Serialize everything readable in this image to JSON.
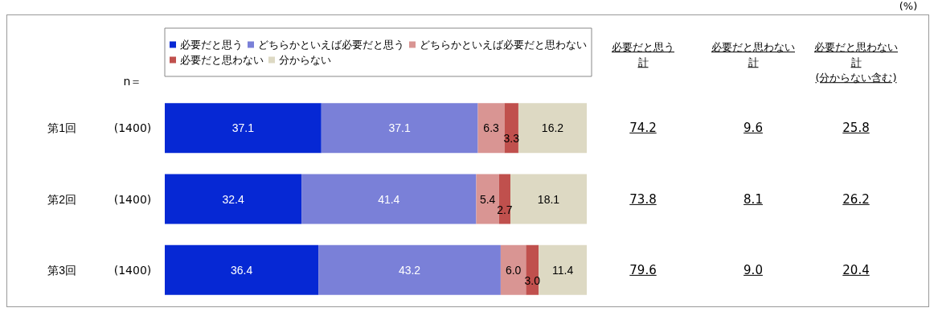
{
  "chart_data": {
    "type": "bar",
    "orientation": "horizontal",
    "stacked": true,
    "categories": [
      "第1回",
      "第2回",
      "第3回"
    ],
    "xlim": [
      0,
      100
    ],
    "tick_labels": "y",
    "legend": "top",
    "series": [
      {
        "name": "必要だと思う",
        "color": "#0628d4",
        "values": [
          37.1,
          32.4,
          36.4
        ],
        "value_labels": [
          "37.1",
          "32.4",
          "36.4"
        ]
      },
      {
        "name": "どちらかといえば必要だと思う",
        "color": "#7a80d8",
        "values": [
          37.1,
          41.4,
          43.2
        ],
        "value_labels": [
          "37.1",
          "41.4",
          "43.2"
        ]
      },
      {
        "name": "どちらかといえば必要だと思わない",
        "color": "#d99593",
        "values": [
          6.3,
          5.4,
          6.0
        ],
        "value_labels": [
          "6.3",
          "5.4",
          "6.0"
        ]
      },
      {
        "name": "必要だと思わない",
        "color": "#c0504d",
        "values": [
          3.3,
          2.7,
          3.0
        ],
        "value_labels": [
          "3.3",
          "2.7",
          "3.0"
        ]
      },
      {
        "name": "分からない",
        "color": "#ddd9c3",
        "values": [
          16.2,
          18.1,
          11.4
        ],
        "value_labels": [
          "16.2",
          "18.1",
          "11.4"
        ]
      }
    ],
    "annotations": [
      "(%)",
      "n＝",
      "(1400)",
      "(1400)",
      "(1400)",
      "必要だと思う",
      "計",
      "74.2",
      "73.8",
      "79.6",
      "必要だと思わない",
      "計",
      "9.6",
      "8.1",
      "9.0",
      "必要だと思わない",
      "計",
      "(分からない含む)",
      "25.8",
      "26.2",
      "20.4"
    ]
  }
}
